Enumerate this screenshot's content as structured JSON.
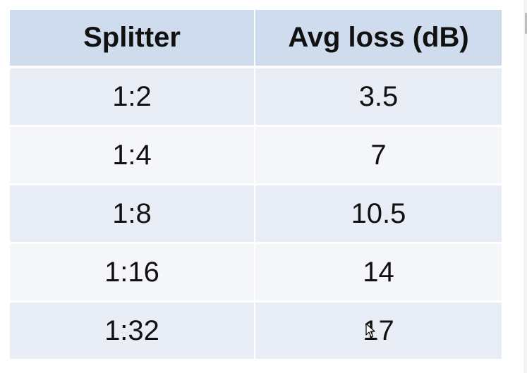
{
  "table": {
    "headers": {
      "splitter": "Splitter",
      "loss": "Avg loss (dB)"
    },
    "rows": [
      {
        "splitter": "1:2",
        "loss": "3.5"
      },
      {
        "splitter": "1:4",
        "loss": "7"
      },
      {
        "splitter": "1:8",
        "loss": "10.5"
      },
      {
        "splitter": "1:16",
        "loss": "14"
      },
      {
        "splitter": "1:32",
        "loss": "17"
      }
    ]
  },
  "colors": {
    "header_bg": "#cfdcee",
    "row_bg_odd": "#e9eef6",
    "row_bg_even": "#f4f6fa",
    "text": "#111111"
  },
  "icons": {
    "cursor": "mouse-pointer-icon"
  }
}
